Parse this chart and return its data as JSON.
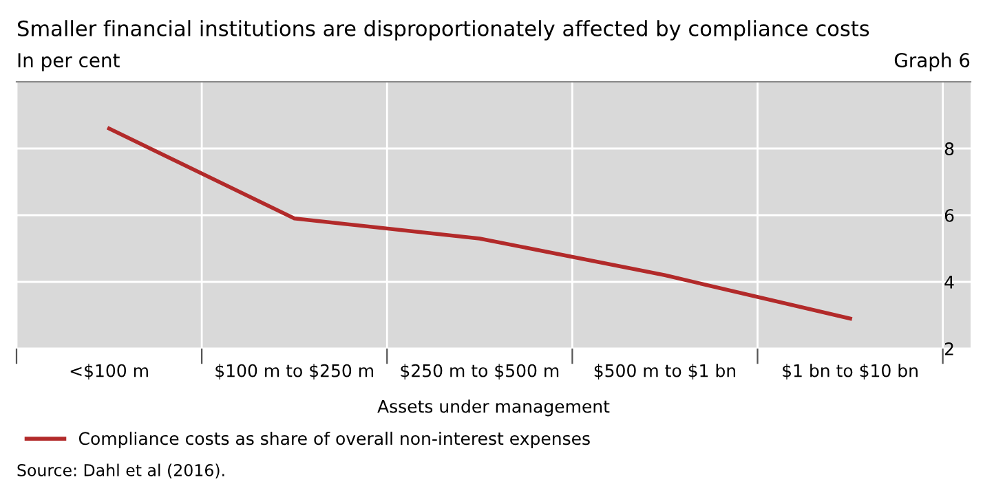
{
  "chart_data": {
    "type": "line",
    "title": "Smaller financial institutions are disproportionately affected by compliance costs",
    "subtitle": "In per cent",
    "xlabel": "Assets under management",
    "categories": [
      "<$100 m",
      "$100 m to $250 m",
      "$250 m to $500 m",
      "$500 m to $1 bn",
      "$1 bn to $10 bn"
    ],
    "series": [
      {
        "name": "Compliance costs as share of overall non-interest expenses",
        "color": "#b22a2a",
        "values": [
          8.6,
          5.9,
          5.3,
          4.2,
          2.9
        ]
      }
    ],
    "ylim": [
      2,
      10
    ],
    "yticks": [
      2,
      4,
      6,
      8
    ],
    "grid": true,
    "legend": "bottom",
    "marker": "none",
    "line_style": "solid",
    "annotations": [
      "Graph 6",
      "Source: Dahl et al (2016)."
    ]
  }
}
